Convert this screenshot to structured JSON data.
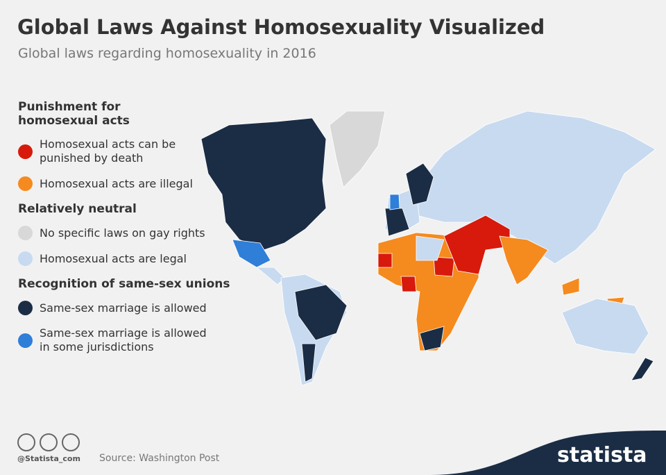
{
  "header": {
    "title": "Global Laws Against Homosexuality Visualized",
    "subtitle": "Global laws regarding homosexuality in 2016"
  },
  "legend": {
    "groups": [
      {
        "heading": "Punishment for homosexual acts",
        "items": [
          {
            "label": "Homosexual acts can be punished by death",
            "color": "#d71a0c"
          },
          {
            "label": "Homosexual acts are illegal",
            "color": "#f58a1f"
          }
        ]
      },
      {
        "heading": "Relatively neutral",
        "items": [
          {
            "label": "No specific laws on gay rights",
            "color": "#d8d8d8"
          },
          {
            "label": "Homosexual acts are legal",
            "color": "#c7daf0"
          }
        ]
      },
      {
        "heading": "Recognition of same-sex unions",
        "items": [
          {
            "label": "Same-sex marriage is allowed",
            "color": "#1b2d45"
          },
          {
            "label": "Same-sex marriage is allowed in some jurisdictions",
            "color": "#2f7ed8"
          }
        ]
      }
    ]
  },
  "footer": {
    "credit": "@Statista_com",
    "source": "Source: Washington Post",
    "brand": "statista"
  }
}
